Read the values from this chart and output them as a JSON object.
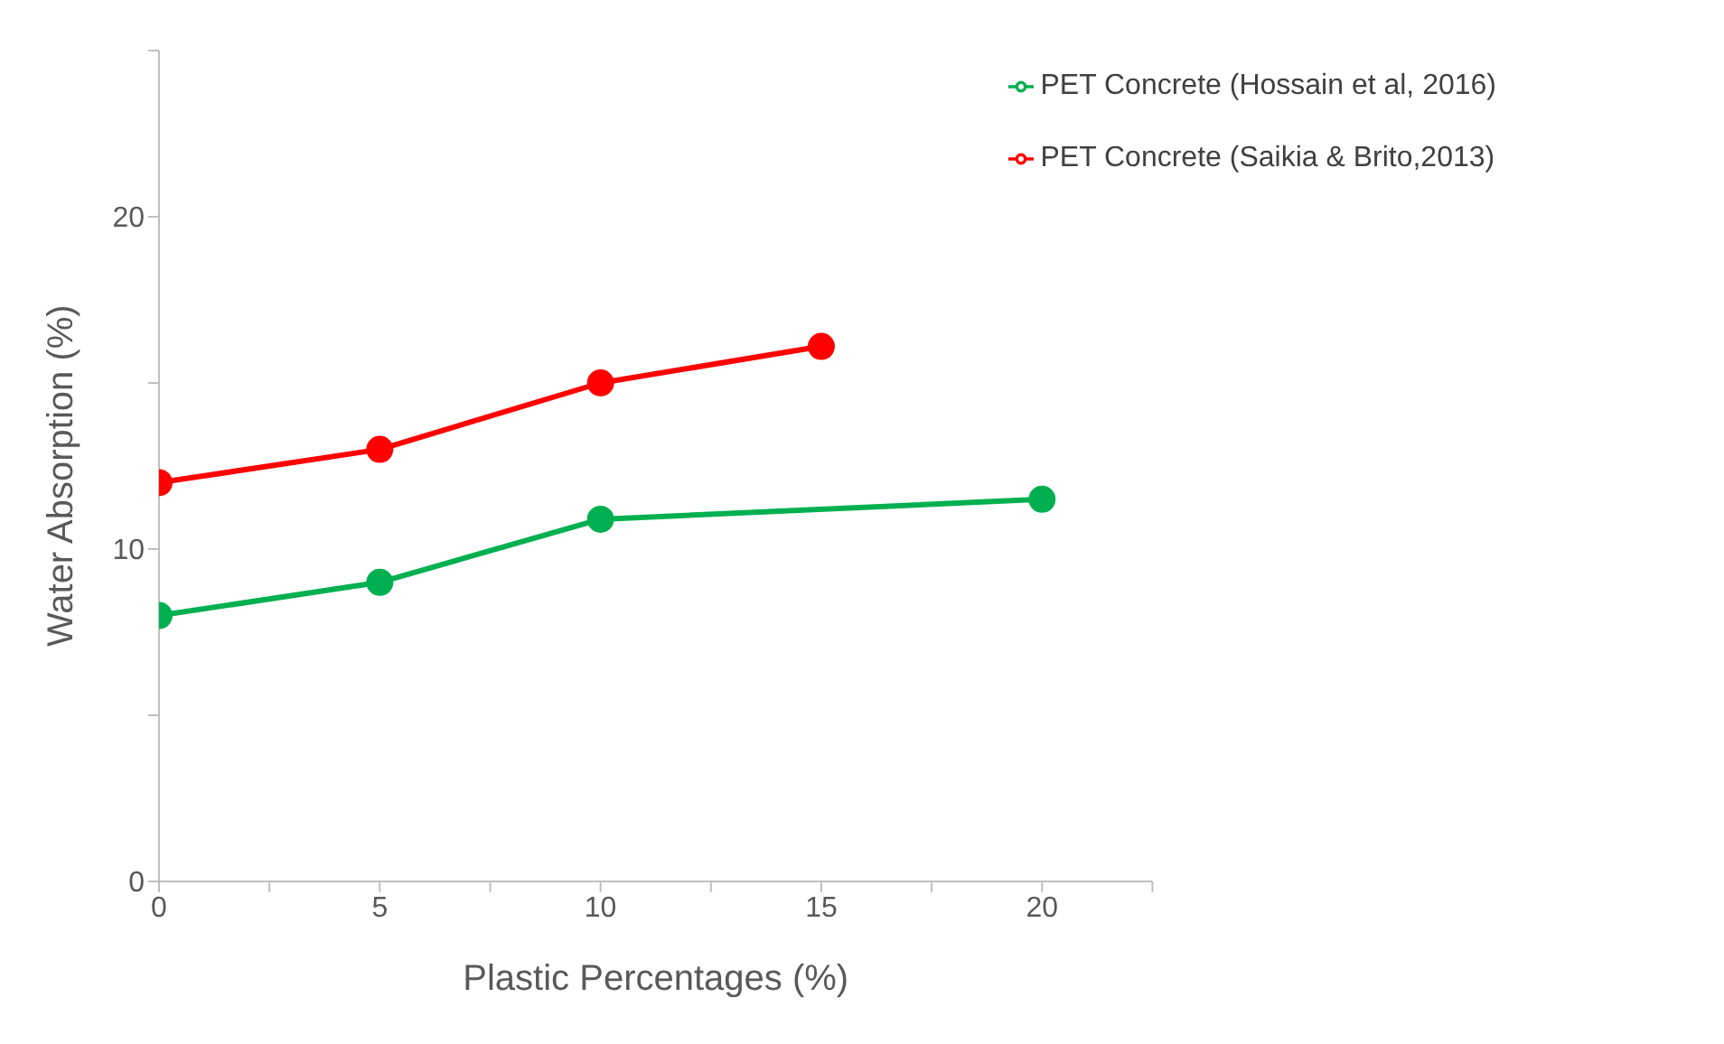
{
  "chart_data": {
    "type": "line",
    "xlabel": "Plastic Percentages (%)",
    "ylabel": "Water Absorption (%)",
    "xlim": [
      0,
      22.5
    ],
    "xticks": [
      0,
      {
        "value": 2.5,
        "label": null
      },
      5,
      {
        "value": 7.5,
        "label": null
      },
      10,
      {
        "value": 12.5,
        "label": null
      },
      15,
      {
        "value": 17.5,
        "label": null
      },
      20,
      {
        "value": 22.5,
        "label": null
      }
    ],
    "ylim": [
      0,
      25
    ],
    "yticks": [
      0,
      {
        "value": 5,
        "label": null
      },
      10,
      {
        "value": 15,
        "label": null
      },
      20,
      {
        "value": 25,
        "label": null
      }
    ],
    "grid": false,
    "legend": "top right",
    "marker": "circle",
    "line_style": "solid",
    "series": [
      {
        "name": "PET Concrete (Saikia & Brito,2013)",
        "color": "#ff0000",
        "x": [
          0,
          5,
          10,
          15
        ],
        "values": [
          12,
          13,
          15,
          16.1
        ]
      },
      {
        "name": "PET Concrete (Hossain et al, 2016)",
        "color": "#00b050",
        "x": [
          0,
          5,
          10,
          20
        ],
        "values": [
          8,
          9,
          10.9,
          11.5
        ]
      }
    ]
  }
}
